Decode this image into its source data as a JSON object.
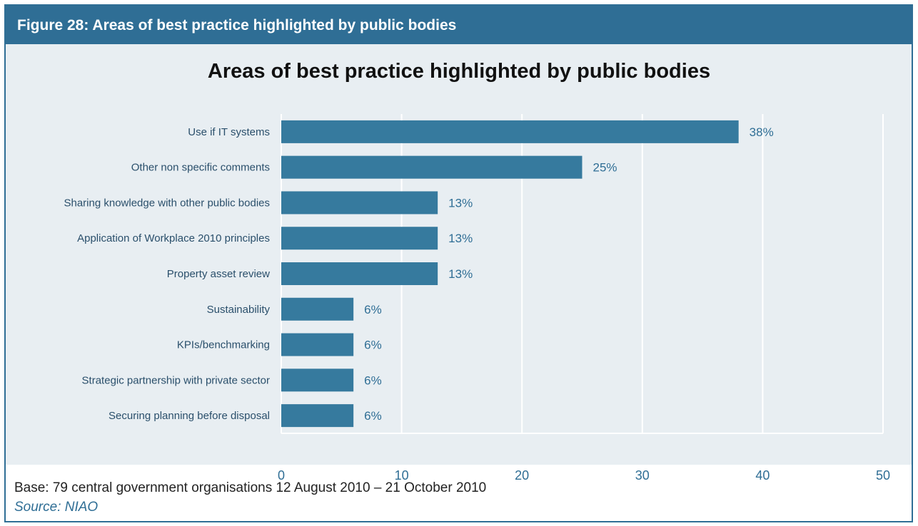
{
  "figure": {
    "title": "Figure 28: Areas of best practice highlighted by public bodies"
  },
  "footer": {
    "base": "Base: 79 central government organisations 12 August 2010 – 21 October 2010",
    "source": "Source: NIAO"
  },
  "colors": {
    "bar": "#367a9e",
    "header": "#2f6e95",
    "plot_background": "#e8eef2",
    "gridline": "#ffffff"
  },
  "chart_data": {
    "type": "bar",
    "orientation": "horizontal",
    "title": "Areas of best practice highlighted by public bodies",
    "categories": [
      "Use if IT systems",
      "Other non specific comments",
      "Sharing knowledge with other public bodies",
      "Application of Workplace 2010 principles",
      "Property asset review",
      "Sustainability",
      "KPIs/benchmarking",
      "Strategic partnership with private sector",
      "Securing planning before disposal"
    ],
    "values": [
      38,
      25,
      13,
      13,
      13,
      6,
      6,
      6,
      6
    ],
    "value_labels": [
      "38%",
      "25%",
      "13%",
      "13%",
      "13%",
      "6%",
      "6%",
      "6%",
      "6%"
    ],
    "xlim": [
      0,
      50
    ],
    "xticks": [
      0,
      10,
      20,
      30,
      40,
      50
    ],
    "grid": true,
    "legend": "none"
  }
}
